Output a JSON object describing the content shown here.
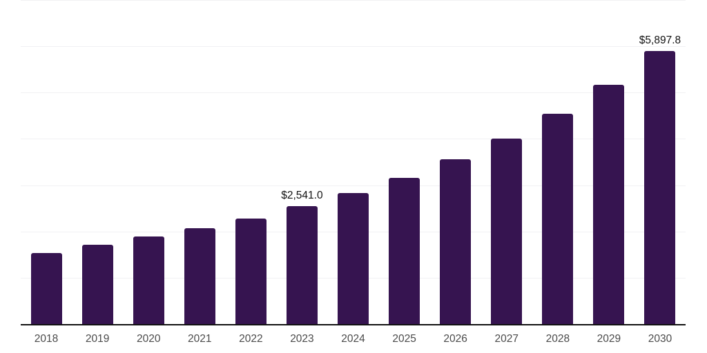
{
  "chart_data": {
    "type": "bar",
    "title": "",
    "xlabel": "",
    "ylabel": "",
    "categories": [
      "2018",
      "2019",
      "2020",
      "2021",
      "2022",
      "2023",
      "2024",
      "2025",
      "2026",
      "2027",
      "2028",
      "2029",
      "2030"
    ],
    "values": [
      1530,
      1710,
      1890,
      2070,
      2280,
      2541.0,
      2830,
      3160,
      3560,
      4000,
      4540,
      5170,
      5897.8
    ],
    "data_labels": {
      "2023": "$2,541.0",
      "2030": "$5,897.8"
    },
    "ylim": [
      0,
      7000
    ],
    "gridline_values": [
      1000,
      2000,
      3000,
      4000,
      5000,
      6000,
      7000
    ],
    "grid": "horizontal-only",
    "legend": "none",
    "y_axis_ticks_visible": false,
    "colors": {
      "bar": "#361450",
      "axis_line": "#111111",
      "gridline": "#f1f1f3",
      "tick_label": "#4a4a4a",
      "data_label": "#111111",
      "background": "#ffffff"
    }
  }
}
